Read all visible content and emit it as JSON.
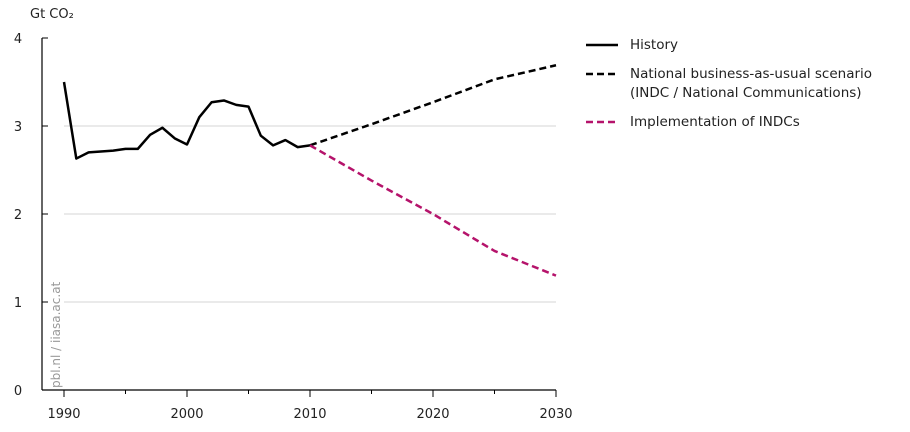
{
  "chart_data": {
    "type": "line",
    "y_label": "Gt CO₂",
    "watermark": "pbl.nl / iiasa.ac.at",
    "xlim": [
      1990,
      2030
    ],
    "xticks": [
      1990,
      2000,
      2010,
      2020,
      2030
    ],
    "xminor_ticks": [
      1995,
      2005,
      2015,
      2025
    ],
    "ylim": [
      0,
      4
    ],
    "yticks": [
      0,
      1,
      2,
      3,
      4
    ],
    "grid": true,
    "series": [
      {
        "name": "History",
        "color": "#000000",
        "dash": false,
        "x": [
          1990,
          1991,
          1992,
          1993,
          1994,
          1995,
          1996,
          1997,
          1998,
          1999,
          2000,
          2001,
          2002,
          2003,
          2004,
          2005,
          2006,
          2007,
          2008,
          2009,
          2010
        ],
        "values": [
          3.5,
          2.63,
          2.7,
          2.71,
          2.72,
          2.74,
          2.74,
          2.9,
          2.98,
          2.86,
          2.79,
          3.1,
          3.27,
          3.29,
          3.24,
          3.22,
          2.89,
          2.78,
          2.84,
          2.76,
          2.78
        ]
      },
      {
        "name": "National business-as-usual scenario (INDC / National Communications)",
        "color": "#000000",
        "dash": true,
        "x": [
          2010,
          2015,
          2020,
          2025,
          2030
        ],
        "values": [
          2.78,
          3.02,
          3.27,
          3.53,
          3.69
        ]
      },
      {
        "name": "Implementation of INDCs",
        "color": "#b5136b",
        "dash": true,
        "x": [
          2010,
          2015,
          2020,
          2025,
          2030
        ],
        "values": [
          2.78,
          2.38,
          2.0,
          1.58,
          1.3
        ]
      }
    ]
  }
}
